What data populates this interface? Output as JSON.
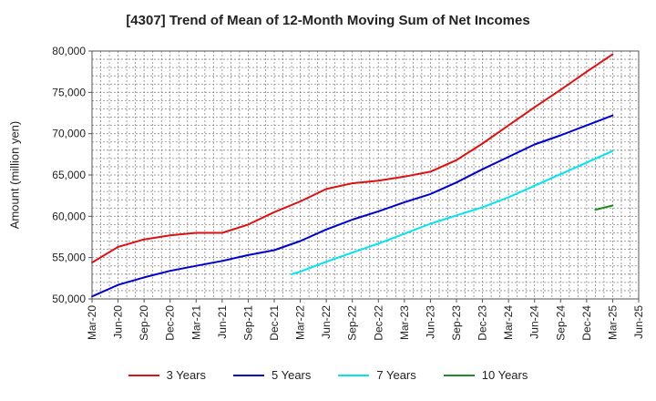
{
  "chart_data": {
    "type": "line",
    "title": "[4307]  Trend of Mean of 12-Month Moving Sum of Net Incomes",
    "ylabel": "Amount (million yen)",
    "xlabel": "",
    "ylim": [
      50000,
      80000
    ],
    "yticks": [
      50000,
      55000,
      60000,
      65000,
      70000,
      75000,
      80000
    ],
    "ytick_labels": [
      "50,000",
      "55,000",
      "60,000",
      "65,000",
      "70,000",
      "75,000",
      "80,000"
    ],
    "x_start": "Mar-20",
    "x_end": "Jun-25",
    "xtick_labels": [
      "Mar-20",
      "Jun-20",
      "Sep-20",
      "Dec-20",
      "Mar-21",
      "Jun-21",
      "Sep-21",
      "Dec-21",
      "Mar-22",
      "Jun-22",
      "Sep-22",
      "Dec-22",
      "Mar-23",
      "Jun-23",
      "Sep-23",
      "Dec-23",
      "Mar-24",
      "Jun-24",
      "Sep-24",
      "Dec-24",
      "Mar-25",
      "Jun-25"
    ],
    "grid": true,
    "legend_position": "bottom",
    "series": [
      {
        "name": "3 Years",
        "color": "#dd1111",
        "points": [
          [
            "Mar-20",
            54400
          ],
          [
            "Jun-20",
            56300
          ],
          [
            "Sep-20",
            57200
          ],
          [
            "Dec-20",
            57700
          ],
          [
            "Mar-21",
            58000
          ],
          [
            "Jun-21",
            58000
          ],
          [
            "Sep-21",
            59000
          ],
          [
            "Dec-21",
            60500
          ],
          [
            "Mar-22",
            61800
          ],
          [
            "Jun-22",
            63300
          ],
          [
            "Sep-22",
            64000
          ],
          [
            "Dec-22",
            64300
          ],
          [
            "Mar-23",
            64800
          ],
          [
            "Jun-23",
            65400
          ],
          [
            "Sep-23",
            66800
          ],
          [
            "Dec-23",
            68800
          ],
          [
            "Mar-24",
            71000
          ],
          [
            "Jun-24",
            73200
          ],
          [
            "Sep-24",
            75300
          ],
          [
            "Dec-24",
            77500
          ],
          [
            "Mar-25",
            79600
          ]
        ]
      },
      {
        "name": "5 Years",
        "color": "#0000cc",
        "points": [
          [
            "Mar-20",
            50300
          ],
          [
            "Jun-20",
            51700
          ],
          [
            "Sep-20",
            52600
          ],
          [
            "Dec-20",
            53400
          ],
          [
            "Mar-21",
            54000
          ],
          [
            "Jun-21",
            54600
          ],
          [
            "Sep-21",
            55300
          ],
          [
            "Dec-21",
            55900
          ],
          [
            "Mar-22",
            57000
          ],
          [
            "Jun-22",
            58400
          ],
          [
            "Sep-22",
            59600
          ],
          [
            "Dec-22",
            60600
          ],
          [
            "Mar-23",
            61700
          ],
          [
            "Jun-23",
            62700
          ],
          [
            "Sep-23",
            64100
          ],
          [
            "Dec-23",
            65700
          ],
          [
            "Mar-24",
            67200
          ],
          [
            "Jun-24",
            68700
          ],
          [
            "Sep-24",
            69800
          ],
          [
            "Dec-24",
            71000
          ],
          [
            "Mar-25",
            72200
          ]
        ]
      },
      {
        "name": "7 Years",
        "color": "#00e5ee",
        "points": [
          [
            "Feb-22",
            53000
          ],
          [
            "Mar-22",
            53300
          ],
          [
            "Jun-22",
            54500
          ],
          [
            "Sep-22",
            55600
          ],
          [
            "Dec-22",
            56700
          ],
          [
            "Mar-23",
            57900
          ],
          [
            "Jun-23",
            59100
          ],
          [
            "Sep-23",
            60100
          ],
          [
            "Dec-23",
            61100
          ],
          [
            "Mar-24",
            62300
          ],
          [
            "Jun-24",
            63700
          ],
          [
            "Sep-24",
            65100
          ],
          [
            "Dec-24",
            66500
          ],
          [
            "Mar-25",
            67900
          ]
        ]
      },
      {
        "name": "10 Years",
        "color": "#228b22",
        "points": [
          [
            "Jan-25",
            60800
          ],
          [
            "Mar-25",
            61300
          ]
        ]
      }
    ]
  }
}
